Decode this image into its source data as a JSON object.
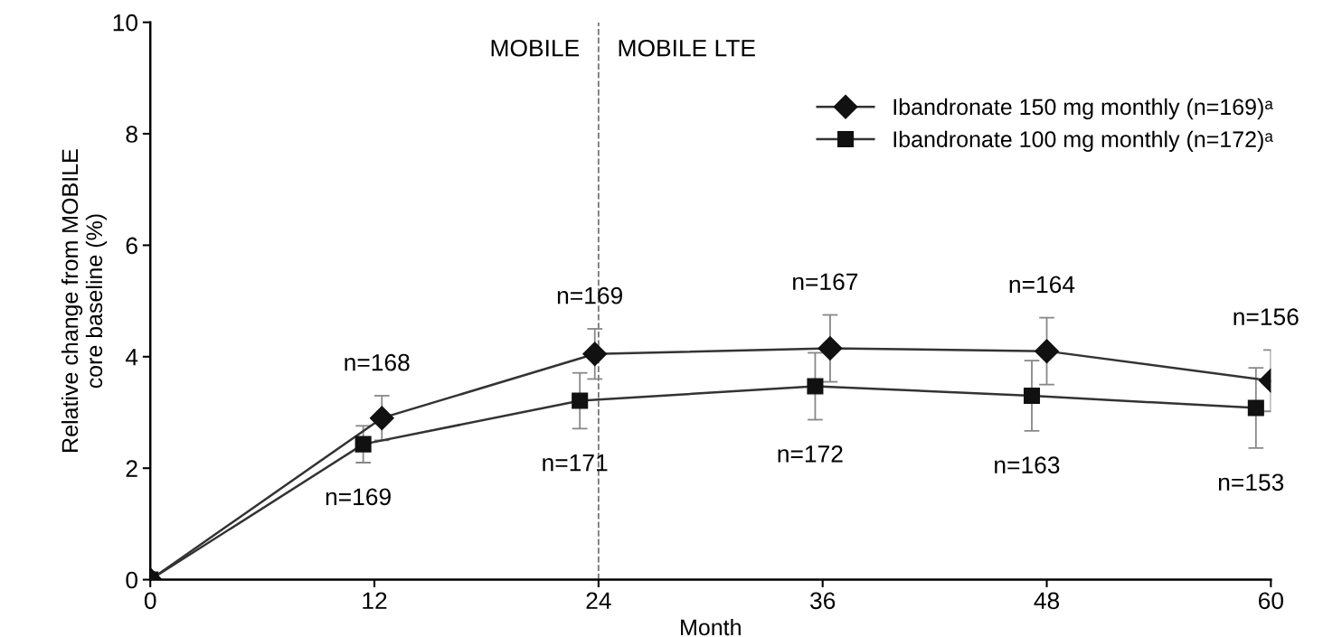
{
  "chart_data": {
    "type": "line",
    "xlabel": "Month",
    "ylabel": "Relative change from MOBILE\ncore baseline (%)",
    "xlim": [
      0,
      60
    ],
    "xticks": [
      0,
      12,
      24,
      36,
      48,
      60
    ],
    "ylim": [
      0,
      10
    ],
    "yticks": [
      0,
      2,
      4,
      6,
      8,
      10
    ],
    "grid": false,
    "legend": "top right",
    "line_style": "solid",
    "series": [
      {
        "name": "Ibandronate 150 mg monthly (n=169)ᵃ",
        "color": "#111111",
        "marker": "diamond",
        "x": [
          0,
          12.4,
          23.8,
          36.4,
          48,
          60
        ],
        "values": [
          0,
          2.9,
          4.05,
          4.15,
          4.1,
          3.57
        ],
        "errors": [
          null,
          0.4,
          0.45,
          0.6,
          0.6,
          0.55
        ]
      },
      {
        "name": "Ibandronate 100 mg monthly (n=172)ᵃ",
        "color": "#111111",
        "marker": "square",
        "x": [
          0,
          11.4,
          23,
          35.6,
          47.2,
          59.2
        ],
        "values": [
          0,
          2.43,
          3.21,
          3.47,
          3.3,
          3.08
        ],
        "errors": [
          null,
          0.33,
          0.5,
          0.6,
          0.63,
          0.72
        ]
      }
    ],
    "ref_lines": [
      {
        "axis": "x",
        "value": 24,
        "color": "#777777",
        "line_style": "dashed"
      }
    ],
    "annotations": [
      "MOBILE",
      "MOBILE LTE",
      {
        "text": "n=168",
        "x": 12.4,
        "y": 2.9
      },
      {
        "text": "n=169",
        "x": 11.4,
        "y": 2.43
      },
      {
        "text": "n=169",
        "x": 23.8,
        "y": 4.05
      },
      {
        "text": "n=171",
        "x": 23,
        "y": 3.21
      },
      {
        "text": "n=167",
        "x": 36.4,
        "y": 4.15
      },
      {
        "text": "n=172",
        "x": 35.6,
        "y": 3.47
      },
      {
        "text": "n=164",
        "x": 48,
        "y": 4.1
      },
      {
        "text": "n=163",
        "x": 47.2,
        "y": 3.3
      },
      {
        "text": "n=156",
        "x": 60,
        "y": 3.57
      },
      {
        "text": "n=153",
        "x": 59.2,
        "y": 3.08
      }
    ]
  }
}
